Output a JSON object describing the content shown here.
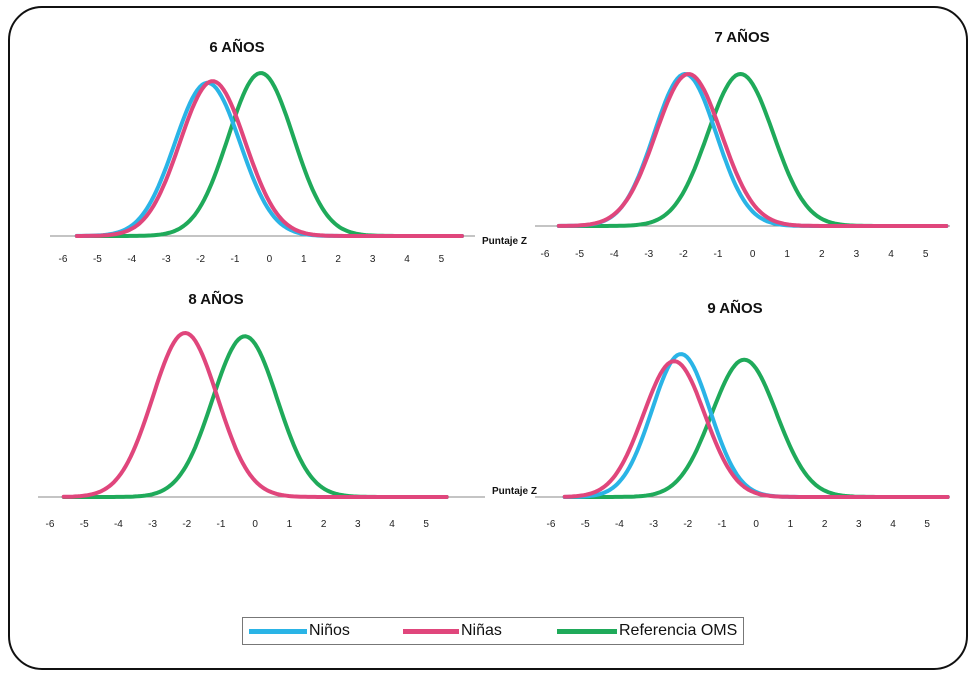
{
  "chart_data": {
    "type": "line",
    "x_axis_label": "Puntaje Z",
    "series_styles": [
      {
        "name": "Niños",
        "color": "#2ab4e6"
      },
      {
        "name": "Niñas",
        "color": "#e0467c"
      },
      {
        "name": "Referencia OMS",
        "color": "#1faa5a"
      }
    ],
    "panels": [
      {
        "title": "6 AÑOS",
        "xticks": [
          "-6",
          "-5",
          "-4",
          "-3",
          "-2",
          "-1",
          "0",
          "1",
          "2",
          "3",
          "4",
          "5"
        ],
        "show_xname": false,
        "series": [
          {
            "name": "Niños",
            "mean": -1.8,
            "sd": 0.95,
            "peak": 0.94
          },
          {
            "name": "Niñas",
            "mean": -1.65,
            "sd": 0.95,
            "peak": 0.95
          },
          {
            "name": "Referencia OMS",
            "mean": -0.25,
            "sd": 0.95,
            "peak": 1.0
          }
        ]
      },
      {
        "title": "7 AÑOS",
        "xticks": [
          "-6",
          "-5",
          "-4",
          "-3",
          "-2",
          "-1",
          "0",
          "1",
          "2",
          "3",
          "4",
          "5"
        ],
        "show_xname": true,
        "series": [
          {
            "name": "Niños",
            "mean": -1.95,
            "sd": 0.9,
            "peak": 1.0
          },
          {
            "name": "Niñas",
            "mean": -1.85,
            "sd": 0.95,
            "peak": 1.0
          },
          {
            "name": "Referencia OMS",
            "mean": -0.35,
            "sd": 0.95,
            "peak": 1.0
          }
        ]
      },
      {
        "title": "8 AÑOS",
        "xticks": [
          "-6",
          "-5",
          "-4",
          "-3",
          "-2",
          "-1",
          "0",
          "1",
          "2",
          "3",
          "4",
          "5"
        ],
        "show_xname": false,
        "series": [
          {
            "name": "Niñas",
            "mean": -2.05,
            "sd": 0.95,
            "peak": 1.0
          },
          {
            "name": "Referencia OMS",
            "mean": -0.3,
            "sd": 0.95,
            "peak": 0.98
          }
        ]
      },
      {
        "title": "9 AÑOS",
        "xticks": [
          "-6",
          "-5",
          "-4",
          "-3",
          "-2",
          "-1",
          "0",
          "1",
          "2",
          "3",
          "4",
          "5"
        ],
        "show_xname": true,
        "series": [
          {
            "name": "Niños",
            "mean": -2.2,
            "sd": 0.85,
            "peak": 1.0
          },
          {
            "name": "Niñas",
            "mean": -2.4,
            "sd": 0.9,
            "peak": 0.95
          },
          {
            "name": "Referencia OMS",
            "mean": -0.35,
            "sd": 0.95,
            "peak": 0.96
          }
        ]
      }
    ]
  },
  "legend": {
    "items": [
      {
        "label": "Niños",
        "color": "#2ab4e6"
      },
      {
        "label": "Niñas",
        "color": "#e0467c"
      },
      {
        "label": "Referencia OMS",
        "color": "#1faa5a"
      }
    ]
  }
}
